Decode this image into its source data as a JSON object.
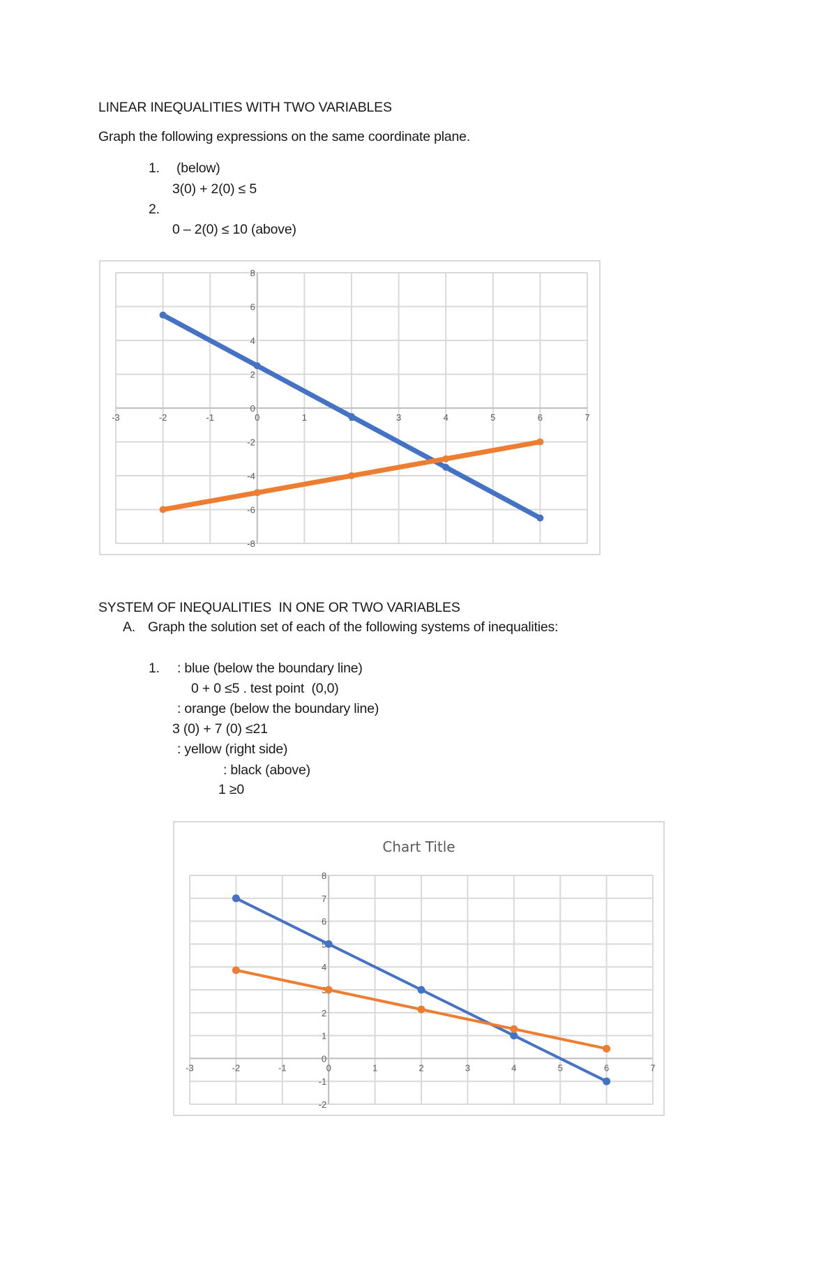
{
  "section1": {
    "heading": "LINEAR INEQUALITIES WITH TWO VARIABLES",
    "instruction": "Graph the following expressions on the same coordinate plane.",
    "items": [
      {
        "number": "1.",
        "label": "(below)",
        "test": "3(0) + 2(0) ≤ 5"
      },
      {
        "number": "2.",
        "label": "",
        "test": "0 – 2(0) ≤ 10 (above)"
      }
    ]
  },
  "section2": {
    "heading": "SYSTEM OF INEQUALITIES  IN ONE OR TWO VARIABLES",
    "sub_letter": "A.",
    "sub_text": "Graph the solution set of each of the following systems of inequalities:",
    "item_number": "1.",
    "lines": [
      ": blue (below the boundary line)",
      "0 + 0 ≤5 . test point  (0,0)",
      ": orange (below the boundary line)",
      "3 (0) + 7 (0) ≤21",
      ": yellow (right side)",
      ": black (above)",
      "1 ≥0"
    ]
  },
  "chart_data": [
    {
      "type": "scatter",
      "title": "",
      "xlim": [
        -3,
        7
      ],
      "ylim": [
        -8,
        8
      ],
      "x_ticks": [
        -3,
        -2,
        -1,
        0,
        1,
        2,
        3,
        4,
        5,
        6,
        7
      ],
      "y_ticks": [
        -8,
        -6,
        -4,
        -2,
        0,
        2,
        4,
        6,
        8
      ],
      "grid": true,
      "legend": "none",
      "series": [
        {
          "color": "#4472c4",
          "x": [
            -2,
            0,
            2,
            4,
            6
          ],
          "y": [
            5.5,
            2.5,
            -0.5,
            -3.5,
            -6.5
          ]
        },
        {
          "color": "#ed7d31",
          "x": [
            -2,
            0,
            2,
            4,
            6
          ],
          "y": [
            -6,
            -5,
            -4,
            -3,
            -2
          ]
        }
      ]
    },
    {
      "type": "scatter",
      "title": "Chart Title",
      "xlim": [
        -3,
        7
      ],
      "ylim": [
        -2,
        8
      ],
      "x_ticks": [
        -3,
        -2,
        -1,
        0,
        1,
        2,
        3,
        4,
        5,
        6,
        7
      ],
      "y_ticks": [
        -2,
        -1,
        0,
        1,
        2,
        3,
        4,
        5,
        6,
        7,
        8
      ],
      "grid": true,
      "legend": "none",
      "series": [
        {
          "color": "#4472c4",
          "x": [
            -2,
            0,
            2,
            4,
            6
          ],
          "y": [
            7,
            5,
            3,
            1,
            -1
          ]
        },
        {
          "color": "#ed7d31",
          "x": [
            -2,
            0,
            2,
            4,
            6
          ],
          "y": [
            3.857,
            3,
            2.143,
            1.286,
            0.429
          ]
        }
      ]
    }
  ]
}
